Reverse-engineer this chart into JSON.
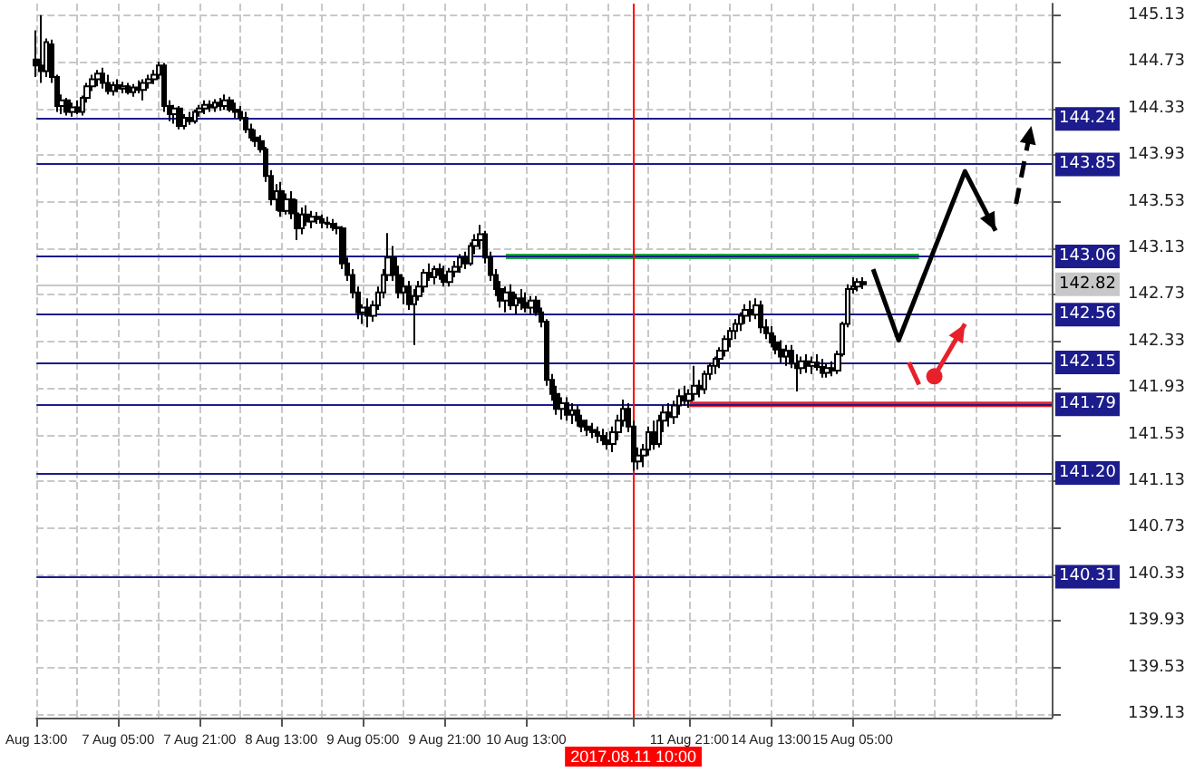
{
  "chart_data": {
    "type": "candlestick",
    "categories": [
      "Aug 13:00",
      null,
      null,
      null,
      null,
      null,
      null,
      null,
      null,
      null,
      null,
      null,
      null,
      null,
      null,
      null,
      "7 Aug 05:00",
      null,
      null,
      null,
      null,
      null,
      null,
      null,
      null,
      null,
      null,
      null,
      null,
      null,
      null,
      null,
      "7 Aug 21:00",
      null,
      null,
      null,
      null,
      null,
      null,
      null,
      null,
      null,
      null,
      null,
      null,
      null,
      null,
      null,
      "8 Aug 13:00",
      null,
      null,
      null,
      null,
      null,
      null,
      null,
      null,
      null,
      null,
      null,
      null,
      null,
      null,
      null,
      "9 Aug 05:00",
      null,
      null,
      null,
      null,
      null,
      null,
      null,
      null,
      null,
      null,
      null,
      null,
      null,
      null,
      null,
      "9 Aug 21:00",
      null,
      null,
      null,
      null,
      null,
      null,
      null,
      null,
      null,
      null,
      null,
      null,
      null,
      null,
      null,
      "10 Aug 13:00",
      null,
      null,
      null,
      null,
      null,
      null,
      null,
      null,
      null,
      null,
      null,
      null,
      null,
      null,
      null,
      null,
      null,
      null,
      null,
      null,
      "2017.08.11 10:00",
      null,
      null,
      null,
      null,
      null,
      null,
      null,
      null,
      null,
      null,
      "11 Aug 21:00",
      null,
      null,
      null,
      null,
      null,
      null,
      null,
      null,
      null,
      null,
      null,
      null,
      null,
      null,
      null,
      "14 Aug 13:00",
      null,
      null,
      null,
      null,
      null,
      null,
      null,
      null,
      null,
      null,
      null,
      null,
      null,
      null,
      null,
      "15 Aug 05:00",
      null,
      null,
      null,
      null,
      null,
      null,
      null,
      null,
      null,
      null,
      null,
      null,
      null,
      null,
      null,
      null,
      null,
      null,
      null,
      null,
      null,
      null,
      null,
      null,
      null,
      null,
      null,
      null,
      null,
      null,
      null,
      null,
      null,
      null,
      null,
      null,
      null,
      null,
      null
    ],
    "ohlc": [
      [
        144.75,
        145.0,
        144.6,
        144.7
      ],
      [
        144.7,
        145.13,
        144.55,
        144.65
      ],
      [
        144.65,
        144.93,
        144.6,
        144.9
      ],
      [
        144.88,
        144.92,
        144.55,
        144.6
      ],
      [
        144.6,
        144.62,
        144.3,
        144.35
      ],
      [
        144.35,
        144.45,
        144.28,
        144.4
      ],
      [
        144.4,
        144.42,
        144.27,
        144.3
      ],
      [
        144.3,
        144.38,
        144.26,
        144.34
      ],
      [
        144.34,
        144.4,
        144.28,
        144.3
      ],
      [
        144.3,
        144.44,
        144.27,
        144.42
      ],
      [
        144.42,
        144.55,
        144.38,
        144.52
      ],
      [
        144.52,
        144.62,
        144.48,
        144.58
      ],
      [
        144.58,
        144.66,
        144.52,
        144.63
      ],
      [
        144.63,
        144.68,
        144.5,
        144.55
      ],
      [
        144.55,
        144.62,
        144.45,
        144.48
      ],
      [
        144.48,
        144.56,
        144.44,
        144.53
      ],
      [
        144.53,
        144.58,
        144.47,
        144.5
      ],
      [
        144.5,
        144.56,
        144.46,
        144.52
      ],
      [
        144.52,
        144.55,
        144.45,
        144.47
      ],
      [
        144.47,
        144.54,
        144.43,
        144.51
      ],
      [
        144.51,
        144.57,
        144.46,
        144.49
      ],
      [
        144.49,
        144.58,
        144.4,
        144.55
      ],
      [
        144.55,
        144.62,
        144.5,
        144.58
      ],
      [
        144.58,
        144.66,
        144.54,
        144.62
      ],
      [
        144.62,
        144.73,
        144.58,
        144.7
      ],
      [
        144.7,
        144.72,
        144.3,
        144.35
      ],
      [
        144.35,
        144.4,
        144.22,
        144.28
      ],
      [
        144.28,
        144.36,
        144.2,
        144.33
      ],
      [
        144.33,
        144.35,
        144.15,
        144.18
      ],
      [
        144.18,
        144.28,
        144.15,
        144.25
      ],
      [
        144.25,
        144.3,
        144.19,
        144.22
      ],
      [
        144.22,
        144.32,
        144.2,
        144.3
      ],
      [
        144.3,
        144.36,
        144.26,
        144.33
      ],
      [
        144.33,
        144.4,
        144.28,
        144.36
      ],
      [
        144.36,
        144.4,
        144.3,
        144.34
      ],
      [
        144.34,
        144.41,
        144.3,
        144.38
      ],
      [
        144.38,
        144.42,
        144.31,
        144.35
      ],
      [
        144.35,
        144.45,
        144.32,
        144.4
      ],
      [
        144.4,
        144.43,
        144.3,
        144.32
      ],
      [
        144.32,
        144.38,
        144.25,
        144.3
      ],
      [
        144.3,
        144.35,
        144.22,
        144.25
      ],
      [
        144.25,
        144.3,
        144.12,
        144.15
      ],
      [
        144.15,
        144.2,
        144.05,
        144.08
      ],
      [
        144.08,
        144.15,
        144.0,
        144.05
      ],
      [
        144.05,
        144.1,
        143.95,
        143.98
      ],
      [
        143.98,
        144.0,
        143.7,
        143.75
      ],
      [
        143.75,
        143.8,
        143.5,
        143.55
      ],
      [
        143.55,
        143.68,
        143.45,
        143.62
      ],
      [
        143.62,
        143.7,
        143.4,
        143.45
      ],
      [
        143.45,
        143.6,
        143.42,
        143.55
      ],
      [
        143.55,
        143.62,
        143.38,
        143.43
      ],
      [
        143.43,
        143.55,
        143.2,
        143.3
      ],
      [
        143.3,
        143.48,
        143.25,
        143.42
      ],
      [
        143.42,
        143.5,
        143.32,
        143.36
      ],
      [
        143.36,
        143.45,
        143.3,
        143.4
      ],
      [
        143.4,
        143.44,
        143.34,
        143.38
      ],
      [
        143.38,
        143.42,
        143.3,
        143.35
      ],
      [
        143.35,
        143.4,
        143.3,
        143.34
      ],
      [
        143.34,
        143.38,
        143.28,
        143.31
      ],
      [
        143.31,
        143.35,
        143.25,
        143.3
      ],
      [
        143.3,
        143.32,
        142.95,
        143.0
      ],
      [
        143.0,
        143.05,
        142.85,
        142.9
      ],
      [
        142.9,
        142.95,
        142.7,
        142.75
      ],
      [
        142.75,
        142.8,
        142.52,
        142.58
      ],
      [
        142.58,
        142.65,
        142.48,
        142.62
      ],
      [
        142.62,
        142.7,
        142.45,
        142.55
      ],
      [
        142.55,
        142.68,
        142.5,
        142.64
      ],
      [
        142.64,
        142.8,
        142.6,
        142.75
      ],
      [
        142.75,
        142.95,
        142.7,
        142.9
      ],
      [
        142.9,
        143.26,
        142.85,
        143.05
      ],
      [
        143.05,
        143.15,
        142.85,
        142.9
      ],
      [
        142.9,
        142.98,
        142.7,
        142.75
      ],
      [
        142.75,
        142.88,
        142.65,
        142.8
      ],
      [
        142.8,
        142.85,
        142.6,
        142.65
      ],
      [
        142.65,
        142.78,
        142.3,
        142.72
      ],
      [
        142.72,
        142.85,
        142.68,
        142.8
      ],
      [
        142.8,
        142.95,
        142.75,
        142.92
      ],
      [
        142.92,
        143.0,
        142.85,
        142.88
      ],
      [
        142.88,
        142.98,
        142.82,
        142.95
      ],
      [
        142.95,
        143.0,
        142.86,
        142.9
      ],
      [
        142.9,
        142.98,
        142.8,
        142.84
      ],
      [
        142.84,
        142.96,
        142.8,
        142.93
      ],
      [
        142.93,
        143.02,
        142.88,
        142.97
      ],
      [
        142.97,
        143.08,
        142.92,
        143.05
      ],
      [
        143.05,
        143.1,
        142.95,
        143.0
      ],
      [
        143.0,
        143.18,
        142.98,
        143.15
      ],
      [
        143.15,
        143.25,
        143.08,
        143.2
      ],
      [
        143.2,
        143.33,
        143.12,
        143.25
      ],
      [
        143.25,
        143.28,
        143.0,
        143.05
      ],
      [
        143.05,
        143.1,
        142.85,
        142.9
      ],
      [
        142.9,
        142.95,
        142.72,
        142.78
      ],
      [
        142.78,
        142.85,
        142.62,
        142.68
      ],
      [
        142.68,
        142.8,
        142.58,
        142.75
      ],
      [
        142.75,
        142.82,
        142.6,
        142.64
      ],
      [
        142.64,
        142.74,
        142.56,
        142.7
      ],
      [
        142.7,
        142.78,
        142.6,
        142.66
      ],
      [
        142.66,
        142.75,
        142.58,
        142.62
      ],
      [
        142.62,
        142.72,
        142.56,
        142.68
      ],
      [
        142.68,
        142.72,
        142.55,
        142.58
      ],
      [
        142.58,
        142.62,
        142.45,
        142.5
      ],
      [
        142.5,
        142.52,
        141.95,
        142.0
      ],
      [
        142.0,
        142.05,
        141.82,
        141.88
      ],
      [
        141.88,
        141.95,
        141.7,
        141.75
      ],
      [
        141.75,
        141.85,
        141.66,
        141.8
      ],
      [
        141.8,
        141.85,
        141.65,
        141.7
      ],
      [
        141.7,
        141.8,
        141.62,
        141.74
      ],
      [
        141.74,
        141.78,
        141.6,
        141.65
      ],
      [
        141.65,
        141.7,
        141.55,
        141.6
      ],
      [
        141.6,
        141.66,
        141.52,
        141.57
      ],
      [
        141.57,
        141.63,
        141.5,
        141.55
      ],
      [
        141.55,
        141.6,
        141.46,
        141.52
      ],
      [
        141.52,
        141.58,
        141.44,
        141.48
      ],
      [
        141.48,
        141.55,
        141.4,
        141.45
      ],
      [
        141.45,
        141.6,
        141.38,
        141.55
      ],
      [
        141.55,
        141.7,
        141.48,
        141.65
      ],
      [
        141.65,
        141.83,
        141.6,
        141.75
      ],
      [
        141.75,
        141.8,
        141.55,
        141.6
      ],
      [
        141.6,
        141.65,
        141.22,
        141.3
      ],
      [
        141.3,
        141.42,
        141.23,
        141.35
      ],
      [
        141.35,
        141.45,
        141.25,
        141.4
      ],
      [
        141.4,
        141.6,
        141.35,
        141.55
      ],
      [
        141.55,
        141.65,
        141.4,
        141.45
      ],
      [
        141.45,
        141.7,
        141.42,
        141.65
      ],
      [
        141.65,
        141.78,
        141.55,
        141.72
      ],
      [
        141.72,
        141.8,
        141.6,
        141.68
      ],
      [
        141.68,
        141.82,
        141.62,
        141.78
      ],
      [
        141.78,
        141.92,
        141.7,
        141.86
      ],
      [
        141.86,
        141.95,
        141.78,
        141.82
      ],
      [
        141.82,
        141.92,
        141.76,
        141.88
      ],
      [
        141.88,
        142.12,
        141.82,
        141.95
      ],
      [
        141.95,
        142.0,
        141.85,
        141.92
      ],
      [
        141.92,
        142.08,
        141.88,
        142.05
      ],
      [
        142.05,
        142.15,
        142.0,
        142.12
      ],
      [
        142.12,
        142.2,
        142.05,
        142.18
      ],
      [
        142.18,
        142.28,
        142.1,
        142.25
      ],
      [
        142.25,
        142.38,
        142.2,
        142.35
      ],
      [
        142.35,
        142.45,
        142.28,
        142.42
      ],
      [
        142.42,
        142.52,
        142.35,
        142.48
      ],
      [
        142.48,
        142.58,
        142.42,
        142.55
      ],
      [
        142.55,
        142.65,
        142.48,
        142.6
      ],
      [
        142.6,
        142.68,
        142.5,
        142.56
      ],
      [
        142.56,
        142.7,
        142.52,
        142.64
      ],
      [
        142.64,
        142.68,
        142.4,
        142.45
      ],
      [
        142.45,
        142.52,
        142.35,
        142.4
      ],
      [
        142.4,
        142.46,
        142.28,
        142.32
      ],
      [
        142.32,
        142.38,
        142.22,
        142.26
      ],
      [
        142.26,
        142.34,
        142.15,
        142.2
      ],
      [
        142.2,
        142.3,
        142.12,
        142.25
      ],
      [
        142.25,
        142.3,
        142.1,
        142.14
      ],
      [
        142.14,
        142.22,
        141.9,
        142.1
      ],
      [
        142.1,
        142.2,
        142.05,
        142.16
      ],
      [
        142.16,
        142.22,
        142.06,
        142.12
      ],
      [
        142.12,
        142.2,
        142.05,
        142.15
      ],
      [
        142.15,
        142.22,
        142.08,
        142.11
      ],
      [
        142.11,
        142.18,
        142.02,
        142.06
      ],
      [
        142.06,
        142.14,
        142.02,
        142.1
      ],
      [
        142.1,
        142.16,
        142.03,
        142.08
      ],
      [
        142.08,
        142.25,
        142.05,
        142.22
      ],
      [
        142.22,
        142.5,
        142.2,
        142.48
      ],
      [
        142.48,
        142.82,
        142.45,
        142.78
      ],
      [
        142.78,
        142.88,
        142.74,
        142.8
      ],
      [
        142.8,
        142.87,
        142.76,
        142.84
      ],
      [
        142.84,
        142.88,
        142.78,
        142.82
      ],
      null,
      null,
      null,
      null,
      null,
      null,
      null,
      null,
      null,
      null,
      null,
      null,
      null,
      null,
      null,
      null,
      null,
      null,
      null,
      null,
      null,
      null,
      null,
      null,
      null,
      null,
      null,
      null,
      null,
      null,
      null,
      null,
      null,
      null,
      null,
      null,
      null
    ],
    "series": [
      {
        "type": "line",
        "color": "#1fa83c",
        "values": [
          null,
          null,
          null,
          null,
          null,
          null,
          null,
          null,
          null,
          null,
          null,
          null,
          null,
          null,
          null,
          null,
          null,
          null,
          null,
          null,
          null,
          null,
          null,
          null,
          null,
          null,
          null,
          null,
          null,
          null,
          null,
          null,
          null,
          null,
          null,
          null,
          null,
          null,
          null,
          null,
          null,
          null,
          null,
          null,
          null,
          null,
          null,
          null,
          null,
          null,
          null,
          null,
          null,
          null,
          null,
          null,
          null,
          null,
          null,
          null,
          null,
          null,
          null,
          null,
          null,
          null,
          null,
          null,
          null,
          null,
          null,
          null,
          null,
          null,
          null,
          null,
          null,
          null,
          null,
          null,
          null,
          null,
          null,
          null,
          null,
          null,
          null,
          null,
          null,
          null,
          null,
          null,
          143.06,
          143.06,
          143.06,
          143.06,
          143.06,
          143.06,
          143.06,
          143.06,
          143.06,
          143.06,
          143.06,
          143.06,
          143.06,
          143.06,
          143.06,
          143.06,
          143.06,
          143.06,
          143.06,
          143.06,
          143.06,
          143.06,
          143.06,
          143.06,
          143.06,
          143.06,
          143.06,
          143.06,
          143.06,
          143.06,
          143.06,
          143.06,
          143.06,
          143.06,
          143.06,
          143.06,
          143.06,
          143.06,
          143.06,
          143.06,
          143.06,
          143.06,
          143.06,
          143.06,
          143.06,
          143.06,
          143.06,
          143.06,
          143.06,
          143.06,
          143.06,
          143.06,
          143.06,
          143.06,
          143.06,
          143.06,
          143.06,
          143.06,
          143.06,
          143.06,
          143.06,
          143.06,
          143.06,
          143.06,
          143.06,
          143.06,
          143.06,
          143.06,
          143.06,
          143.06,
          143.06,
          143.06,
          143.06,
          143.06,
          143.06,
          143.06,
          143.06,
          143.06,
          143.06,
          143.06,
          143.06,
          143.06,
          null,
          null,
          null,
          null,
          null,
          null,
          null,
          null,
          null,
          null,
          null,
          null,
          null,
          null,
          null,
          null,
          null,
          null,
          null,
          null,
          null,
          null,
          null,
          null,
          null,
          null
        ]
      },
      {
        "type": "line",
        "color": "#e8202a",
        "values": [
          null,
          null,
          null,
          null,
          null,
          null,
          null,
          null,
          null,
          null,
          null,
          null,
          null,
          null,
          null,
          null,
          null,
          null,
          null,
          null,
          null,
          null,
          null,
          null,
          null,
          null,
          null,
          null,
          null,
          null,
          null,
          null,
          null,
          null,
          null,
          null,
          null,
          null,
          null,
          null,
          null,
          null,
          null,
          null,
          null,
          null,
          null,
          null,
          null,
          null,
          null,
          null,
          null,
          null,
          null,
          null,
          null,
          null,
          null,
          null,
          null,
          null,
          null,
          null,
          null,
          null,
          null,
          null,
          null,
          null,
          null,
          null,
          null,
          null,
          null,
          null,
          null,
          null,
          null,
          null,
          null,
          null,
          null,
          null,
          null,
          null,
          null,
          null,
          null,
          null,
          null,
          null,
          null,
          null,
          null,
          null,
          null,
          null,
          null,
          null,
          null,
          null,
          null,
          null,
          null,
          null,
          null,
          null,
          null,
          null,
          null,
          null,
          null,
          null,
          null,
          null,
          null,
          null,
          null,
          null,
          null,
          null,
          null,
          null,
          null,
          null,
          null,
          null,
          141.79,
          141.79,
          141.79,
          141.79,
          141.79,
          141.79,
          141.79,
          141.79,
          141.79,
          141.79,
          141.79,
          141.79,
          141.79,
          141.79,
          141.79,
          141.79,
          141.79,
          141.79,
          141.79,
          141.79,
          141.79,
          141.79,
          141.79,
          141.79,
          141.79,
          141.79,
          141.79,
          141.79,
          141.79,
          141.79,
          141.79,
          141.79,
          141.79,
          141.79,
          141.79,
          141.79,
          141.79,
          141.79,
          141.79,
          141.79,
          141.79,
          141.79,
          141.79,
          141.79,
          141.79,
          141.79,
          141.79,
          141.79,
          141.79,
          141.79,
          141.79,
          141.79,
          141.79,
          141.79,
          141.79,
          141.79,
          141.79,
          141.79,
          141.79,
          141.79,
          141.79,
          141.79,
          141.79,
          141.79,
          141.79,
          141.79,
          141.79,
          141.79,
          141.79,
          141.79,
          141.79,
          141.79
        ]
      }
    ],
    "ylim": [
      139.1,
      145.23
    ],
    "yticks": [
      139.13,
      139.53,
      139.93,
      140.33,
      140.73,
      141.13,
      141.53,
      141.93,
      142.33,
      142.73,
      143.13,
      143.53,
      143.93,
      144.33,
      144.73,
      145.13
    ],
    "grid": true,
    "ref_lines": [
      {
        "axis": "y",
        "value": 144.24,
        "label": "144.24",
        "color": "#1c1c8c"
      },
      {
        "axis": "y",
        "value": 143.85,
        "label": "143.85",
        "color": "#1c1c8c"
      },
      {
        "axis": "y",
        "value": 143.06,
        "label": "143.06",
        "color": "#1c1c8c"
      },
      {
        "axis": "y",
        "value": 142.82,
        "label": "142.82",
        "color": "#c8c8c8"
      },
      {
        "axis": "y",
        "value": 142.56,
        "label": "142.56",
        "color": "#1c1c8c"
      },
      {
        "axis": "y",
        "value": 142.15,
        "label": "142.15",
        "color": "#1c1c8c"
      },
      {
        "axis": "y",
        "value": 141.79,
        "label": "141.79",
        "color": "#1c1c8c"
      },
      {
        "axis": "y",
        "value": 141.2,
        "label": "141.20",
        "color": "#1c1c8c"
      },
      {
        "axis": "y",
        "value": 140.31,
        "label": "140.31",
        "color": "#1c1c8c"
      },
      {
        "axis": "x",
        "value": "2017.08.11 10:00",
        "color": "#ff0000"
      }
    ]
  }
}
